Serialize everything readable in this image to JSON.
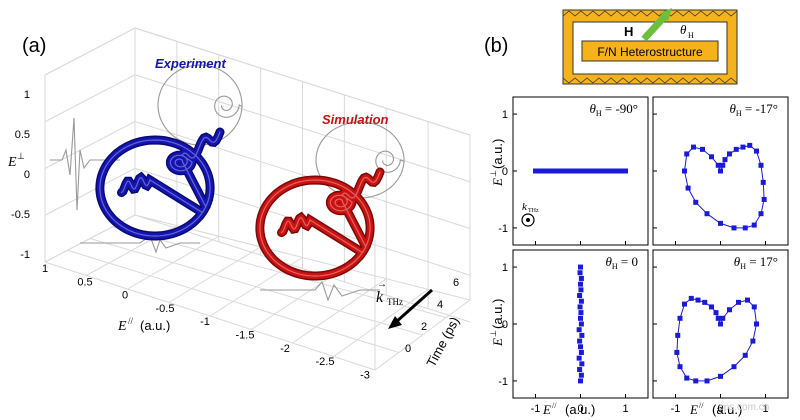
{
  "panel_a": {
    "label": "(a)",
    "experiment_label": "Experiment",
    "simulation_label": "Simulation",
    "z_axis_label": "E⊥",
    "x_axis_label": "E// (a.u.)",
    "y_axis_label": "Time (ps)",
    "z_ticks": [
      "1",
      "0.5",
      "0",
      "-0.5",
      "-1"
    ],
    "x_ticks": [
      "1",
      "0.5",
      "0",
      "-0.5",
      "-1",
      "-1.5",
      "-2",
      "-2.5",
      "-3"
    ],
    "y_ticks": [
      "0",
      "2",
      "4",
      "6"
    ],
    "k_label": "k",
    "k_sub": "THz",
    "colors": {
      "experiment": "#1414b4",
      "simulation": "#cc1111",
      "projection": "#999999"
    }
  },
  "panel_b": {
    "label": "(b)",
    "schematic": {
      "field_label": "H",
      "angle_label": "θ",
      "angle_sub": "H",
      "box_label": "F/N Heterostructure"
    },
    "y_axis_label": "E⊥ (a.u.)",
    "x_axis_label": "E// (a.u.)",
    "ticks": [
      "-1",
      "0",
      "1"
    ],
    "k_label": "k",
    "k_sub": "THz",
    "watermark": "cps.com.cn",
    "colors": {
      "data": "#1a1ad9",
      "schematic_fill": "#f5b21b",
      "arrow": "#6cbf3a"
    }
  },
  "chart_data": [
    {
      "type": "scatter",
      "panel": "a",
      "title": "",
      "series": [
        {
          "name": "Experiment",
          "shape": "elliptical spiral trajectory E(t)"
        },
        {
          "name": "Simulation",
          "shape": "elliptical spiral trajectory E(t)"
        }
      ],
      "xlabel": "E// (a.u.)",
      "ylabel": "Time (ps)",
      "zlabel": "E⊥",
      "xlim": [
        -3,
        1
      ],
      "ylim": [
        0,
        7
      ],
      "zlim": [
        -1,
        1
      ]
    },
    {
      "type": "scatter",
      "panel": "b",
      "subplots": [
        {
          "title": "θH = -90°",
          "x": [
            -1.0,
            -0.9,
            -0.8,
            -0.7,
            -0.6,
            -0.5,
            -0.4,
            -0.3,
            -0.2,
            -0.1,
            0,
            0.1,
            0.2,
            0.3,
            0.4,
            0.5,
            0.6,
            0.7,
            0.8,
            0.9,
            1.0
          ],
          "y": [
            0,
            0,
            0,
            0,
            0,
            0,
            0,
            0,
            0,
            0,
            0,
            0,
            0,
            0,
            0,
            0,
            0,
            0,
            0,
            0,
            0
          ]
        },
        {
          "title": "θH = -17°",
          "x": [
            0,
            0.05,
            0.1,
            0.2,
            0.35,
            0.5,
            0.65,
            0.8,
            0.9,
            0.95,
            0.97,
            0.9,
            0.75,
            0.55,
            0.3,
            0,
            -0.3,
            -0.55,
            -0.72,
            -0.8,
            -0.75,
            -0.6,
            -0.4,
            -0.2,
            -0.05,
            0
          ],
          "y": [
            0,
            0.1,
            0.2,
            0.3,
            0.38,
            0.42,
            0.45,
            0.35,
            0.1,
            -0.2,
            -0.5,
            -0.75,
            -0.95,
            -1.0,
            -1.0,
            -0.92,
            -0.75,
            -0.55,
            -0.3,
            0,
            0.3,
            0.42,
            0.38,
            0.25,
            0.1,
            0
          ]
        },
        {
          "title": "θH = 0",
          "x": [
            0,
            0.02,
            -0.02,
            0.03,
            -0.03,
            0.02,
            0,
            -0.02,
            0.03,
            -0.03,
            0.02,
            0,
            0.01,
            -0.01,
            0.02,
            -0.02,
            0.01,
            0,
            0.02,
            -0.01,
            0
          ],
          "y": [
            -1.0,
            -0.9,
            -0.8,
            -0.7,
            -0.6,
            -0.5,
            -0.4,
            -0.3,
            -0.2,
            -0.1,
            0,
            0.1,
            0.2,
            0.3,
            0.4,
            0.5,
            0.6,
            0.7,
            0.8,
            0.9,
            1.0
          ]
        },
        {
          "title": "θH = 17°",
          "x": [
            0,
            -0.05,
            -0.1,
            -0.2,
            -0.35,
            -0.5,
            -0.65,
            -0.8,
            -0.9,
            -0.95,
            -0.97,
            -0.9,
            -0.75,
            -0.55,
            -0.3,
            0,
            0.3,
            0.55,
            0.72,
            0.8,
            0.75,
            0.6,
            0.4,
            0.2,
            0.05,
            0
          ],
          "y": [
            0,
            0.1,
            0.2,
            0.3,
            0.38,
            0.42,
            0.45,
            0.35,
            0.1,
            -0.2,
            -0.5,
            -0.75,
            -0.95,
            -1.0,
            -1.0,
            -0.92,
            -0.75,
            -0.55,
            -0.3,
            0,
            0.3,
            0.42,
            0.38,
            0.25,
            0.1,
            0
          ]
        }
      ],
      "xlabel": "E// (a.u.)",
      "ylabel": "E⊥ (a.u.)",
      "xlim": [
        -1.5,
        1.5
      ],
      "ylim": [
        -1.3,
        1.3
      ]
    }
  ]
}
